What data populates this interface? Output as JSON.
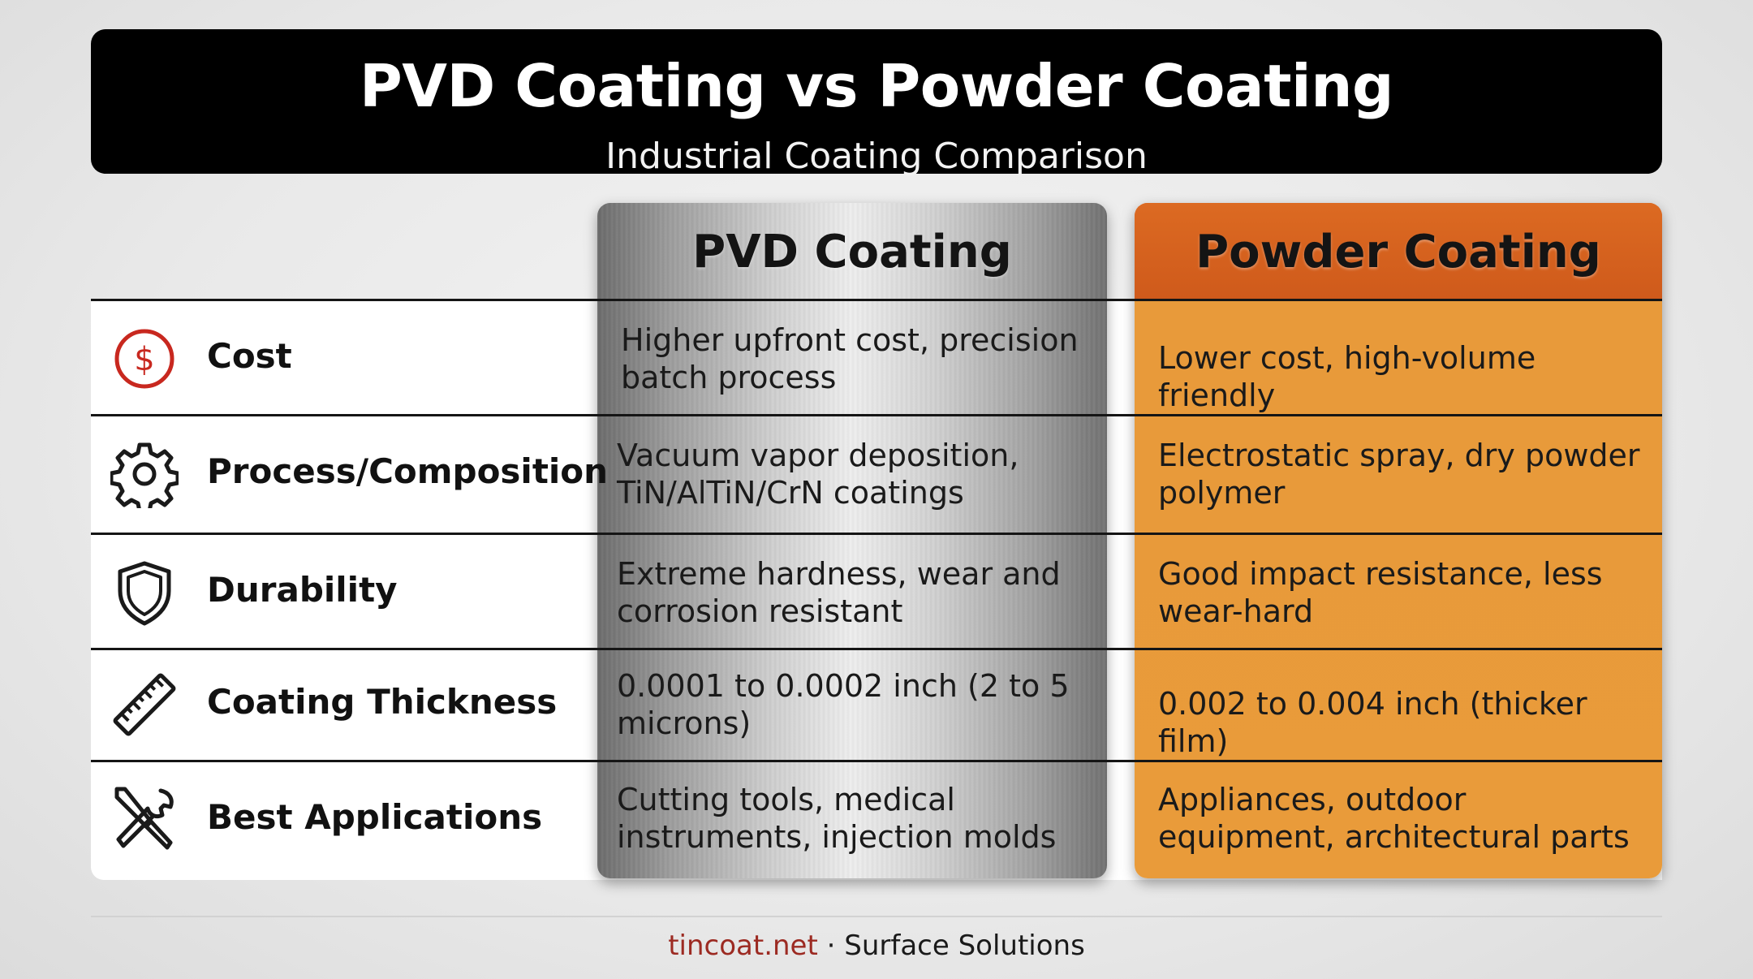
{
  "title": "PVD Coating vs Powder Coating",
  "subtitle": "Industrial Coating Comparison",
  "columns": {
    "pvd": "PVD Coating",
    "powder": "Powder Coating"
  },
  "rows": [
    {
      "icon": "dollar-icon",
      "label": "Cost",
      "pvd": "Higher upfront cost, precision batch process",
      "powder": "Lower cost, high-volume friendly"
    },
    {
      "icon": "gear-icon",
      "label": "Process/Composition",
      "pvd": "Vacuum vapor deposition, TiN/AlTiN/CrN coatings",
      "powder": "Electrostatic spray, dry powder polymer"
    },
    {
      "icon": "shield-icon",
      "label": "Durability",
      "pvd": "Extreme hardness, wear and corrosion resistant",
      "powder": "Good impact resistance, less wear-hard"
    },
    {
      "icon": "ruler-icon",
      "label": "Coating Thickness",
      "pvd": "0.0001 to 0.0002 inch (2 to 5 microns)",
      "powder": "0.002 to 0.004 inch (thicker film)"
    },
    {
      "icon": "tools-icon",
      "label": "Best Applications",
      "pvd": "Cutting tools, medical instruments, injection molds",
      "powder": "Appliances, outdoor equipment, architectural parts"
    }
  ],
  "footer": {
    "site": "tincoat.net",
    "separator": " · ",
    "tagline": "Surface Solutions"
  },
  "colors": {
    "header_bg": "#000000",
    "powder_header": "#d9621f",
    "powder_body": "#e99b3a",
    "dollar_icon": "#c8281f",
    "site_text": "#9c2a22"
  }
}
